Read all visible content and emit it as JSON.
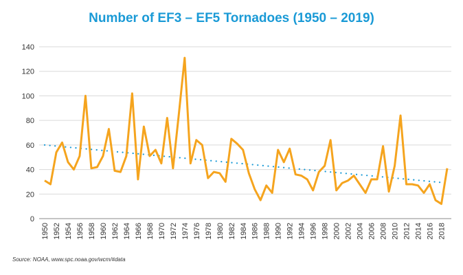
{
  "chart_data": {
    "type": "line",
    "title": "Number of EF3 – EF5 Tornadoes (1950 – 2019)",
    "source": "Source: NOAA, www.spc.noaa.gov/wcm/#data",
    "xlabel": "",
    "ylabel": "",
    "ylim": [
      0,
      140
    ],
    "yticks": [
      0,
      20,
      40,
      60,
      80,
      100,
      120,
      140
    ],
    "xlim": [
      1950,
      2019
    ],
    "grid": true,
    "colors": {
      "line": "#f5a41e",
      "trend": "#1a9ad6",
      "title": "#1a9ad6"
    },
    "x": [
      1950,
      1951,
      1952,
      1953,
      1954,
      1955,
      1956,
      1957,
      1958,
      1959,
      1960,
      1961,
      1962,
      1963,
      1964,
      1965,
      1966,
      1967,
      1968,
      1969,
      1970,
      1971,
      1972,
      1973,
      1974,
      1975,
      1976,
      1977,
      1978,
      1979,
      1980,
      1981,
      1982,
      1983,
      1984,
      1985,
      1986,
      1987,
      1988,
      1989,
      1990,
      1991,
      1992,
      1993,
      1994,
      1995,
      1996,
      1997,
      1998,
      1999,
      2000,
      2001,
      2002,
      2003,
      2004,
      2005,
      2006,
      2007,
      2008,
      2009,
      2010,
      2011,
      2012,
      2013,
      2014,
      2015,
      2016,
      2017,
      2018,
      2019
    ],
    "values": [
      31,
      28,
      54,
      62,
      46,
      40,
      51,
      100,
      41,
      42,
      51,
      73,
      39,
      38,
      51,
      102,
      32,
      75,
      51,
      56,
      45,
      82,
      41,
      85,
      131,
      45,
      64,
      60,
      33,
      38,
      37,
      30,
      65,
      61,
      56,
      37,
      24,
      15,
      27,
      21,
      56,
      46,
      57,
      36,
      35,
      32,
      23,
      38,
      43,
      64,
      23,
      29,
      31,
      35,
      28,
      21,
      32,
      32,
      59,
      22,
      43,
      84,
      28,
      28,
      27,
      21,
      28,
      15,
      12,
      41
    ],
    "trendline": {
      "style": "dotted",
      "start": [
        1950,
        60
      ],
      "end": [
        2019,
        29
      ]
    }
  }
}
